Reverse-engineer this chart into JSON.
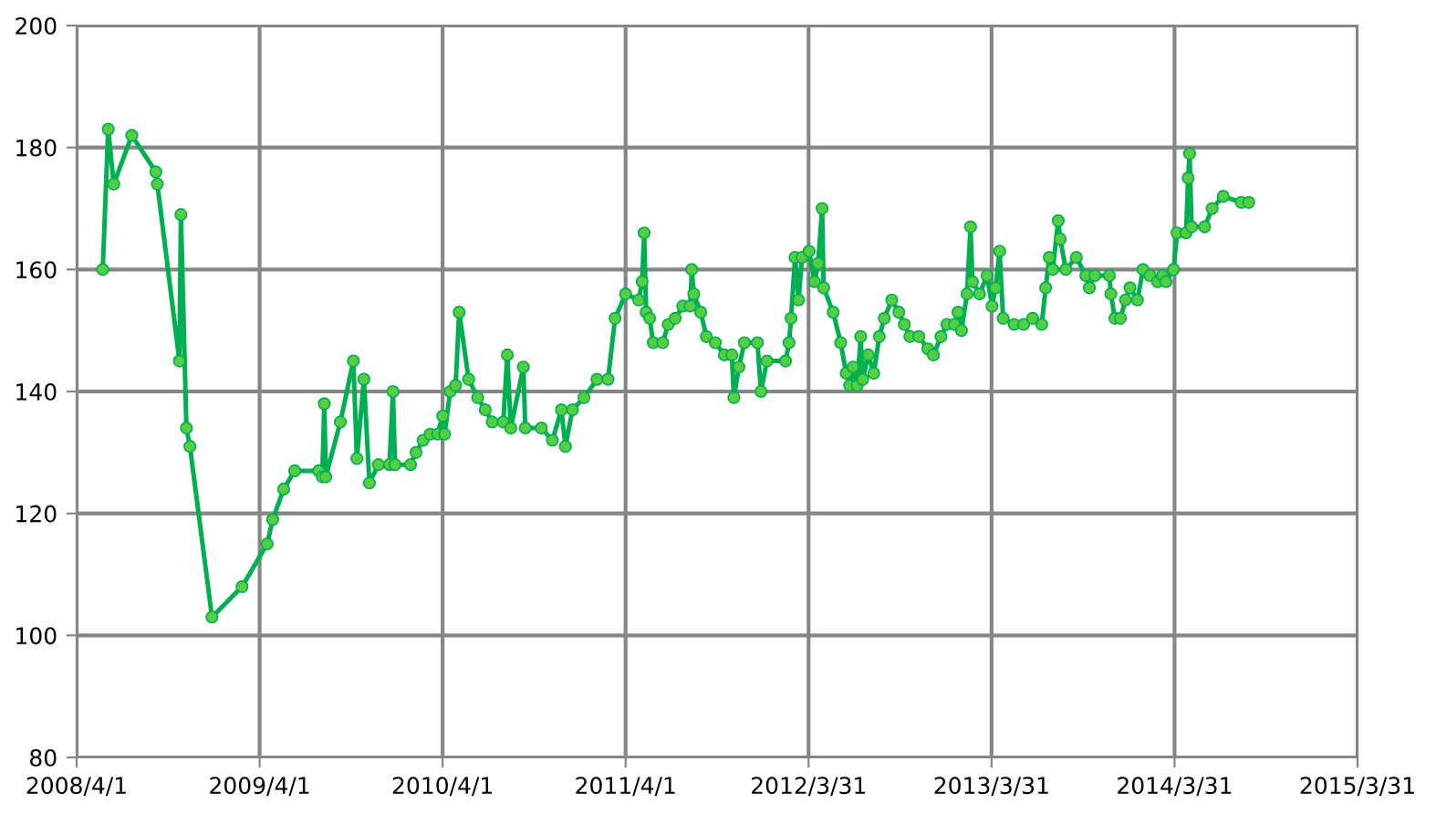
{
  "chart_data": {
    "type": "line",
    "x": [
      "2008-05-23",
      "2008-06-03",
      "2008-06-14",
      "2008-07-20",
      "2008-09-06",
      "2008-09-09",
      "2008-10-23",
      "2008-10-26",
      "2008-11-06",
      "2008-11-13",
      "2008-12-27",
      "2009-02-25",
      "2009-04-16",
      "2009-04-27",
      "2009-05-19",
      "2009-06-10",
      "2009-07-28",
      "2009-08-04",
      "2009-08-08",
      "2009-08-11",
      "2009-09-09",
      "2009-10-05",
      "2009-10-12",
      "2009-10-26",
      "2009-11-06",
      "2009-11-24",
      "2009-12-16",
      "2009-12-23",
      "2009-12-27",
      "2010-01-27",
      "2010-02-07",
      "2010-02-21",
      "2010-03-07",
      "2010-03-22",
      "2010-04-01",
      "2010-04-05",
      "2010-04-16",
      "2010-04-27",
      "2010-05-04",
      "2010-05-23",
      "2010-06-10",
      "2010-06-25",
      "2010-07-09",
      "2010-07-31",
      "2010-08-08",
      "2010-08-15",
      "2010-09-09",
      "2010-09-13",
      "2010-10-15",
      "2010-11-06",
      "2010-11-24",
      "2010-12-02",
      "2010-12-16",
      "2011-01-08",
      "2011-02-03",
      "2011-02-25",
      "2011-03-11",
      "2011-04-01",
      "2011-04-27",
      "2011-05-04",
      "2011-05-08",
      "2011-05-12",
      "2011-05-19",
      "2011-05-26",
      "2011-06-14",
      "2011-06-25",
      "2011-07-09",
      "2011-07-24",
      "2011-08-08",
      "2011-08-11",
      "2011-08-15",
      "2011-08-29",
      "2011-09-09",
      "2011-09-27",
      "2011-10-15",
      "2011-10-30",
      "2011-11-03",
      "2011-11-13",
      "2011-11-24",
      "2011-12-20",
      "2011-12-27",
      "2012-01-08",
      "2012-02-14",
      "2012-02-21",
      "2012-02-25",
      "2012-03-04",
      "2012-03-11",
      "2012-03-18",
      "2012-04-01",
      "2012-04-12",
      "2012-04-19",
      "2012-04-27",
      "2012-04-30",
      "2012-05-19",
      "2012-06-03",
      "2012-06-14",
      "2012-06-21",
      "2012-06-28",
      "2012-07-06",
      "2012-07-13",
      "2012-07-17",
      "2012-07-28",
      "2012-08-08",
      "2012-08-19",
      "2012-08-29",
      "2012-09-13",
      "2012-09-27",
      "2012-10-08",
      "2012-10-19",
      "2012-11-06",
      "2012-11-24",
      "2012-12-05",
      "2012-12-20",
      "2013-01-01",
      "2013-01-16",
      "2013-01-23",
      "2013-01-30",
      "2013-02-10",
      "2013-02-17",
      "2013-02-21",
      "2013-03-07",
      "2013-03-22",
      "2013-04-01",
      "2013-04-08",
      "2013-04-16",
      "2013-04-23",
      "2013-05-15",
      "2013-06-03",
      "2013-06-21",
      "2013-07-09",
      "2013-07-17",
      "2013-07-24",
      "2013-07-31",
      "2013-08-11",
      "2013-08-15",
      "2013-08-26",
      "2013-09-16",
      "2013-10-05",
      "2013-10-12",
      "2013-10-23",
      "2013-11-21",
      "2013-11-24",
      "2013-12-02",
      "2013-12-13",
      "2013-12-23",
      "2014-01-01",
      "2014-01-16",
      "2014-01-27",
      "2014-02-10",
      "2014-02-25",
      "2014-03-07",
      "2014-03-14",
      "2014-03-29",
      "2014-04-05",
      "2014-04-23",
      "2014-04-27",
      "2014-04-30",
      "2014-05-04",
      "2014-05-30",
      "2014-06-14",
      "2014-07-06",
      "2014-08-11",
      "2014-08-26"
    ],
    "series": [
      {
        "color": "#00b050",
        "values": [
          160,
          183,
          174,
          182,
          176,
          174,
          145,
          169,
          134,
          131,
          103,
          108,
          115,
          119,
          124,
          127,
          127,
          126,
          138,
          126,
          135,
          145,
          129,
          142,
          125,
          128,
          128,
          140,
          128,
          128,
          130,
          132,
          133,
          133,
          136,
          133,
          140,
          141,
          153,
          142,
          139,
          137,
          135,
          135,
          146,
          134,
          144,
          134,
          134,
          132,
          137,
          131,
          137,
          139,
          142,
          142,
          152,
          156,
          155,
          158,
          166,
          153,
          152,
          148,
          148,
          151,
          152,
          154,
          154,
          160,
          156,
          153,
          149,
          148,
          146,
          146,
          139,
          144,
          148,
          148,
          140,
          145,
          145,
          148,
          152,
          162,
          155,
          162,
          163,
          158,
          161,
          170,
          157,
          153,
          148,
          143,
          141,
          144,
          141,
          149,
          142,
          146,
          143,
          149,
          152,
          155,
          153,
          151,
          149,
          149,
          147,
          146,
          149,
          151,
          151,
          153,
          150,
          156,
          167,
          158,
          156,
          159,
          154,
          157,
          163,
          152,
          151,
          151,
          152,
          151,
          157,
          162,
          160,
          168,
          165,
          160,
          162,
          159,
          157,
          159,
          159,
          156,
          152,
          152,
          155,
          157,
          155,
          160,
          159,
          158,
          159,
          158,
          160,
          166,
          166,
          175,
          179,
          167,
          167,
          170,
          172,
          171,
          171
        ]
      }
    ],
    "xlim": [
      "2008-04-01",
      "2015-03-31"
    ],
    "xticks": [
      {
        "value": "2008-04-01",
        "label": "2008/4/1"
      },
      {
        "value": "2009-04-01",
        "label": "2009/4/1"
      },
      {
        "value": "2010-04-01",
        "label": "2010/4/1"
      },
      {
        "value": "2011-04-01",
        "label": "2011/4/1"
      },
      {
        "value": "2012-03-31",
        "label": "2012/3/31"
      },
      {
        "value": "2013-03-31",
        "label": "2013/3/31"
      },
      {
        "value": "2014-03-31",
        "label": "2014/3/31"
      },
      {
        "value": "2015-03-31",
        "label": "2015/3/31"
      }
    ],
    "ylim": [
      80,
      200
    ],
    "yticks": [
      80,
      100,
      120,
      140,
      160,
      180,
      200
    ],
    "grid": true,
    "marker": "circle"
  }
}
